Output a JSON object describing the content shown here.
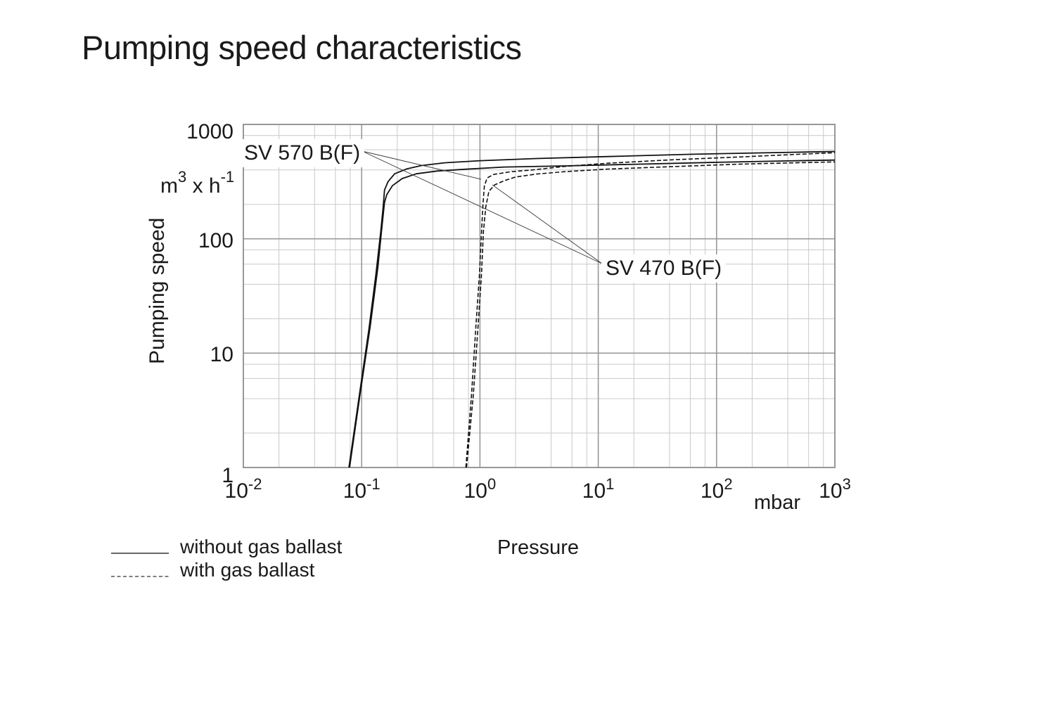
{
  "title": "Pumping speed characteristics",
  "y_axis": {
    "unit_base": "m",
    "unit_exp": "3",
    "unit_mid": " x h",
    "unit_exp2": "-1",
    "label": "Pumping speed",
    "ticks": [
      "1000",
      "100",
      "10",
      "1"
    ]
  },
  "x_axis": {
    "tick_base": "10",
    "tick_exps": [
      "-2",
      "-1",
      "0",
      "1",
      "2",
      "3"
    ],
    "unit": "mbar",
    "label": "Pressure"
  },
  "legend": [
    {
      "style": "solid",
      "label": "without gas ballast"
    },
    {
      "style": "dashed",
      "label": "with gas ballast"
    }
  ],
  "curve_labels": [
    {
      "text": "SV 570 B(F)"
    },
    {
      "text": "SV 470 B(F)"
    }
  ],
  "colors": {
    "text": "#1a1a1a",
    "curve": "#111111",
    "grid_major": "#999999",
    "grid_minor": "#c9c9c9",
    "border": "#8c8c8c",
    "leader_line": "#3a3a3a",
    "background": "#ffffff"
  },
  "chart_data": {
    "type": "line",
    "title": "Pumping speed characteristics",
    "xlabel": "Pressure (mbar)",
    "ylabel": "Pumping speed (m3 x h-1)",
    "x_scale": "log",
    "y_scale": "log",
    "xlim": [
      0.01,
      1000
    ],
    "ylim": [
      1,
      1000
    ],
    "grid": "log grid, minor lines at 2,4,6,8 per decade",
    "legend_position": "below-left",
    "series": [
      {
        "name": "SV 570 B(F) without gas ballast",
        "style": "solid",
        "points": [
          [
            0.078,
            1
          ],
          [
            0.096,
            4.4
          ],
          [
            0.115,
            16
          ],
          [
            0.132,
            49
          ],
          [
            0.145,
            115
          ],
          [
            0.152,
            190
          ],
          [
            0.156,
            267
          ],
          [
            0.167,
            316
          ],
          [
            0.19,
            370
          ],
          [
            0.24,
            408
          ],
          [
            0.32,
            437
          ],
          [
            0.5,
            462
          ],
          [
            1,
            482
          ],
          [
            3,
            503
          ],
          [
            12,
            524
          ],
          [
            63,
            549
          ],
          [
            330,
            568
          ],
          [
            1000,
            580
          ]
        ]
      },
      {
        "name": "SV 470 B(F) without gas ballast",
        "style": "solid",
        "points": [
          [
            0.079,
            1
          ],
          [
            0.097,
            4.4
          ],
          [
            0.118,
            17
          ],
          [
            0.137,
            56
          ],
          [
            0.149,
            132
          ],
          [
            0.156,
            208
          ],
          [
            0.163,
            243
          ],
          [
            0.182,
            291
          ],
          [
            0.22,
            336
          ],
          [
            0.29,
            370
          ],
          [
            0.44,
            392
          ],
          [
            0.76,
            406
          ],
          [
            1.6,
            424
          ],
          [
            5.2,
            434
          ],
          [
            21,
            449
          ],
          [
            100,
            466
          ],
          [
            330,
            478
          ],
          [
            1000,
            488
          ]
        ]
      },
      {
        "name": "SV 570 B(F) with gas ballast",
        "style": "dashed",
        "points": [
          [
            0.76,
            1
          ],
          [
            0.85,
            4.4
          ],
          [
            0.92,
            16
          ],
          [
            0.99,
            49
          ],
          [
            1.03,
            115
          ],
          [
            1.06,
            200
          ],
          [
            1.09,
            290
          ],
          [
            1.15,
            340
          ],
          [
            1.3,
            365
          ],
          [
            1.8,
            385
          ],
          [
            2.7,
            399
          ],
          [
            5.3,
            430
          ],
          [
            12,
            458
          ],
          [
            41,
            490
          ],
          [
            160,
            520
          ],
          [
            430,
            545
          ],
          [
            1000,
            565
          ]
        ]
      },
      {
        "name": "SV 470 B(F) with gas ballast",
        "style": "dashed",
        "points": [
          [
            0.77,
            1
          ],
          [
            0.88,
            4.4
          ],
          [
            0.96,
            16
          ],
          [
            1.03,
            49
          ],
          [
            1.07,
            115
          ],
          [
            1.12,
            190
          ],
          [
            1.19,
            260
          ],
          [
            1.33,
            296
          ],
          [
            1.6,
            322
          ],
          [
            2.0,
            347
          ],
          [
            3.0,
            368
          ],
          [
            5.3,
            387
          ],
          [
            12,
            407
          ],
          [
            41,
            427
          ],
          [
            160,
            450
          ],
          [
            430,
            461
          ],
          [
            1000,
            470
          ]
        ]
      }
    ]
  }
}
